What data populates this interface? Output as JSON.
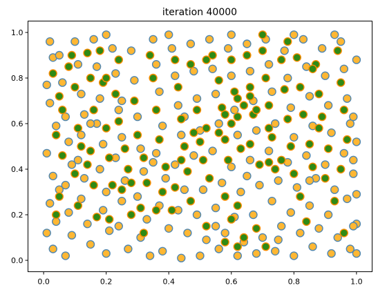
{
  "chart_data": {
    "type": "scatter",
    "title": "iteration 40000",
    "xlabel": "",
    "ylabel": "",
    "xlim": [
      -0.05,
      1.05
    ],
    "ylim": [
      -0.05,
      1.05
    ],
    "xticks": [
      0.0,
      0.2,
      0.4,
      0.6,
      0.8,
      1.0
    ],
    "xtick_labels": [
      "0.0",
      "0.2",
      "0.4",
      "0.6",
      "0.8",
      "1.0"
    ],
    "yticks": [
      0.0,
      0.2,
      0.4,
      0.6,
      0.8,
      1.0
    ],
    "ytick_labels": [
      "0.0",
      "0.2",
      "0.4",
      "0.6",
      "0.8",
      "1.0"
    ],
    "grid": false,
    "legend": "none",
    "series": [
      {
        "style": "orange-fill-steelblue-edge",
        "fill": "#ffb733",
        "edge": "#4f86b0",
        "points": [
          [
            0.01,
            0.77
          ],
          [
            0.02,
            0.96
          ],
          [
            0.03,
            0.89
          ],
          [
            0.02,
            0.69
          ],
          [
            0.04,
            0.59
          ],
          [
            0.01,
            0.47
          ],
          [
            0.03,
            0.37
          ],
          [
            0.05,
            0.31
          ],
          [
            0.02,
            0.25
          ],
          [
            0.04,
            0.17
          ],
          [
            0.01,
            0.12
          ],
          [
            0.03,
            0.05
          ],
          [
            0.06,
            0.78
          ],
          [
            0.07,
            0.63
          ],
          [
            0.08,
            0.52
          ],
          [
            0.09,
            0.42
          ],
          [
            0.07,
            0.33
          ],
          [
            0.08,
            0.21
          ],
          [
            0.09,
            0.11
          ],
          [
            0.07,
            0.02
          ],
          [
            0.1,
            0.96
          ],
          [
            0.11,
            0.86
          ],
          [
            0.12,
            0.73
          ],
          [
            0.13,
            0.64
          ],
          [
            0.12,
            0.55
          ],
          [
            0.11,
            0.44
          ],
          [
            0.13,
            0.36
          ],
          [
            0.12,
            0.27
          ],
          [
            0.14,
            0.16
          ],
          [
            0.15,
            0.07
          ],
          [
            0.16,
            0.97
          ],
          [
            0.17,
            0.85
          ],
          [
            0.18,
            0.71
          ],
          [
            0.17,
            0.6
          ],
          [
            0.19,
            0.51
          ],
          [
            0.18,
            0.4
          ],
          [
            0.2,
            0.3
          ],
          [
            0.19,
            0.22
          ],
          [
            0.21,
            0.13
          ],
          [
            0.2,
            0.03
          ],
          [
            0.22,
            0.93
          ],
          [
            0.23,
            0.82
          ],
          [
            0.24,
            0.66
          ],
          [
            0.25,
            0.54
          ],
          [
            0.23,
            0.45
          ],
          [
            0.26,
            0.35
          ],
          [
            0.25,
            0.26
          ],
          [
            0.24,
            0.15
          ],
          [
            0.27,
            0.05
          ],
          [
            0.28,
            0.92
          ],
          [
            0.29,
            0.79
          ],
          [
            0.3,
            0.63
          ],
          [
            0.31,
            0.49
          ],
          [
            0.32,
            0.39
          ],
          [
            0.3,
            0.28
          ],
          [
            0.33,
            0.18
          ],
          [
            0.31,
            0.1
          ],
          [
            0.34,
            0.02
          ],
          [
            0.35,
            0.97
          ],
          [
            0.36,
            0.86
          ],
          [
            0.37,
            0.74
          ],
          [
            0.38,
            0.59
          ],
          [
            0.36,
            0.47
          ],
          [
            0.39,
            0.36
          ],
          [
            0.37,
            0.24
          ],
          [
            0.4,
            0.14
          ],
          [
            0.38,
            0.04
          ],
          [
            0.41,
            0.93
          ],
          [
            0.42,
            0.81
          ],
          [
            0.43,
            0.68
          ],
          [
            0.44,
            0.55
          ],
          [
            0.42,
            0.42
          ],
          [
            0.45,
            0.31
          ],
          [
            0.43,
            0.22
          ],
          [
            0.46,
            0.12
          ],
          [
            0.44,
            0.01
          ],
          [
            0.47,
            0.95
          ],
          [
            0.48,
            0.83
          ],
          [
            0.49,
            0.71
          ],
          [
            0.5,
            0.57
          ],
          [
            0.48,
            0.46
          ],
          [
            0.51,
            0.31
          ],
          [
            0.49,
            0.2
          ],
          [
            0.52,
            0.09
          ],
          [
            0.5,
            0.02
          ],
          [
            0.53,
            0.97
          ],
          [
            0.54,
            0.84
          ],
          [
            0.55,
            0.73
          ],
          [
            0.56,
            0.6
          ],
          [
            0.54,
            0.48
          ],
          [
            0.57,
            0.34
          ],
          [
            0.55,
            0.23
          ],
          [
            0.58,
            0.12
          ],
          [
            0.56,
            0.05
          ],
          [
            0.59,
            0.93
          ],
          [
            0.6,
            0.81
          ],
          [
            0.61,
            0.66
          ],
          [
            0.62,
            0.55
          ],
          [
            0.6,
            0.41
          ],
          [
            0.63,
            0.3
          ],
          [
            0.61,
            0.19
          ],
          [
            0.64,
            0.08
          ],
          [
            0.62,
            0.02
          ],
          [
            0.65,
            0.95
          ],
          [
            0.66,
            0.83
          ],
          [
            0.67,
            0.7
          ],
          [
            0.68,
            0.57
          ],
          [
            0.66,
            0.44
          ],
          [
            0.69,
            0.33
          ],
          [
            0.67,
            0.2
          ],
          [
            0.7,
            0.1
          ],
          [
            0.68,
            0.03
          ],
          [
            0.71,
            0.97
          ],
          [
            0.72,
            0.86
          ],
          [
            0.73,
            0.74
          ],
          [
            0.74,
            0.6
          ],
          [
            0.72,
            0.48
          ],
          [
            0.75,
            0.35
          ],
          [
            0.73,
            0.26
          ],
          [
            0.76,
            0.15
          ],
          [
            0.74,
            0.04
          ],
          [
            0.77,
            0.92
          ],
          [
            0.78,
            0.8
          ],
          [
            0.79,
            0.67
          ],
          [
            0.8,
            0.54
          ],
          [
            0.78,
            0.43
          ],
          [
            0.81,
            0.32
          ],
          [
            0.79,
            0.21
          ],
          [
            0.82,
            0.12
          ],
          [
            0.8,
            0.02
          ],
          [
            0.83,
            0.97
          ],
          [
            0.84,
            0.85
          ],
          [
            0.85,
            0.72
          ],
          [
            0.86,
            0.59
          ],
          [
            0.84,
            0.46
          ],
          [
            0.87,
            0.36
          ],
          [
            0.85,
            0.24
          ],
          [
            0.88,
            0.14
          ],
          [
            0.86,
            0.06
          ],
          [
            0.89,
            0.93
          ],
          [
            0.9,
            0.81
          ],
          [
            0.91,
            0.68
          ],
          [
            0.92,
            0.56
          ],
          [
            0.9,
            0.42
          ],
          [
            0.93,
            0.31
          ],
          [
            0.91,
            0.2
          ],
          [
            0.94,
            0.1
          ],
          [
            0.92,
            0.03
          ],
          [
            0.95,
            0.96
          ],
          [
            0.96,
            0.84
          ],
          [
            0.97,
            0.71
          ],
          [
            0.98,
            0.6
          ],
          [
            0.96,
            0.47
          ],
          [
            0.99,
            0.38
          ],
          [
            0.97,
            0.27
          ],
          [
            1.0,
            0.16
          ],
          [
            0.98,
            0.05
          ],
          [
            1.0,
            0.88
          ],
          [
            0.99,
            0.63
          ],
          [
            1.0,
            0.52
          ],
          [
            0.99,
            0.44
          ],
          [
            1.0,
            0.29
          ],
          [
            0.99,
            0.15
          ],
          [
            1.0,
            0.03
          ],
          [
            0.15,
            0.6
          ],
          [
            0.35,
            0.43
          ],
          [
            0.45,
            0.63
          ],
          [
            0.55,
            0.15
          ],
          [
            0.65,
            0.37
          ],
          [
            0.75,
            0.09
          ],
          [
            0.85,
            0.35
          ],
          [
            0.25,
            0.7
          ],
          [
            0.05,
            0.9
          ],
          [
            0.6,
            0.99
          ],
          [
            0.4,
            0.99
          ],
          [
            0.2,
            0.99
          ],
          [
            0.8,
            0.99
          ],
          [
            0.93,
            0.99
          ]
        ]
      },
      {
        "style": "green-fill-orange-edge",
        "fill": "#2f8a15",
        "edge": "#ff8c00",
        "points": [
          [
            0.03,
            0.82
          ],
          [
            0.05,
            0.72
          ],
          [
            0.04,
            0.55
          ],
          [
            0.06,
            0.46
          ],
          [
            0.05,
            0.28
          ],
          [
            0.04,
            0.2
          ],
          [
            0.09,
            0.9
          ],
          [
            0.1,
            0.76
          ],
          [
            0.11,
            0.58
          ],
          [
            0.1,
            0.38
          ],
          [
            0.11,
            0.24
          ],
          [
            0.14,
            0.91
          ],
          [
            0.15,
            0.8
          ],
          [
            0.16,
            0.66
          ],
          [
            0.15,
            0.48
          ],
          [
            0.16,
            0.33
          ],
          [
            0.17,
            0.19
          ],
          [
            0.18,
            0.92
          ],
          [
            0.19,
            0.78
          ],
          [
            0.2,
            0.58
          ],
          [
            0.21,
            0.45
          ],
          [
            0.22,
            0.33
          ],
          [
            0.21,
            0.18
          ],
          [
            0.23,
            0.73
          ],
          [
            0.24,
            0.61
          ],
          [
            0.26,
            0.49
          ],
          [
            0.27,
            0.4
          ],
          [
            0.25,
            0.31
          ],
          [
            0.28,
            0.2
          ],
          [
            0.29,
            0.7
          ],
          [
            0.3,
            0.55
          ],
          [
            0.32,
            0.45
          ],
          [
            0.33,
            0.34
          ],
          [
            0.31,
            0.23
          ],
          [
            0.32,
            0.12
          ],
          [
            0.35,
            0.8
          ],
          [
            0.36,
            0.66
          ],
          [
            0.37,
            0.53
          ],
          [
            0.39,
            0.41
          ],
          [
            0.38,
            0.3
          ],
          [
            0.41,
            0.22
          ],
          [
            0.42,
            0.88
          ],
          [
            0.43,
            0.76
          ],
          [
            0.44,
            0.62
          ],
          [
            0.45,
            0.5
          ],
          [
            0.46,
            0.39
          ],
          [
            0.47,
            0.26
          ],
          [
            0.47,
            0.86
          ],
          [
            0.49,
            0.66
          ],
          [
            0.5,
            0.52
          ],
          [
            0.51,
            0.44
          ],
          [
            0.53,
            0.36
          ],
          [
            0.52,
            0.15
          ],
          [
            0.54,
            0.9
          ],
          [
            0.56,
            0.79
          ],
          [
            0.57,
            0.67
          ],
          [
            0.58,
            0.53
          ],
          [
            0.59,
            0.44
          ],
          [
            0.58,
            0.08
          ],
          [
            0.6,
            0.88
          ],
          [
            0.61,
            0.74
          ],
          [
            0.62,
            0.63
          ],
          [
            0.63,
            0.49
          ],
          [
            0.62,
            0.24
          ],
          [
            0.62,
            0.06
          ],
          [
            0.65,
            0.9
          ],
          [
            0.66,
            0.76
          ],
          [
            0.67,
            0.64
          ],
          [
            0.66,
            0.51
          ],
          [
            0.69,
            0.42
          ],
          [
            0.68,
            0.14
          ],
          [
            0.7,
            0.92
          ],
          [
            0.71,
            0.8
          ],
          [
            0.72,
            0.68
          ],
          [
            0.73,
            0.54
          ],
          [
            0.72,
            0.43
          ],
          [
            0.71,
            0.06
          ],
          [
            0.76,
            0.88
          ],
          [
            0.77,
            0.75
          ],
          [
            0.78,
            0.62
          ],
          [
            0.79,
            0.5
          ],
          [
            0.8,
            0.38
          ],
          [
            0.82,
            0.28
          ],
          [
            0.81,
            0.89
          ],
          [
            0.82,
            0.76
          ],
          [
            0.83,
            0.64
          ],
          [
            0.85,
            0.51
          ],
          [
            0.86,
            0.41
          ],
          [
            0.84,
            0.17
          ],
          [
            0.87,
            0.86
          ],
          [
            0.88,
            0.73
          ],
          [
            0.89,
            0.63
          ],
          [
            0.91,
            0.49
          ],
          [
            0.9,
            0.36
          ],
          [
            0.93,
            0.26
          ],
          [
            0.94,
            0.92
          ],
          [
            0.95,
            0.78
          ],
          [
            0.96,
            0.66
          ],
          [
            0.97,
            0.53
          ],
          [
            0.95,
            0.4
          ],
          [
            0.96,
            0.12
          ],
          [
            0.62,
            0.71
          ],
          [
            0.64,
            0.68
          ],
          [
            0.58,
            0.64
          ],
          [
            0.66,
            0.72
          ],
          [
            0.6,
            0.6
          ],
          [
            0.56,
            0.56
          ],
          [
            0.52,
            0.58
          ],
          [
            0.68,
            0.66
          ],
          [
            0.72,
            0.58
          ],
          [
            0.74,
            0.4
          ],
          [
            0.76,
            0.44
          ],
          [
            0.44,
            0.44
          ],
          [
            0.48,
            0.56
          ],
          [
            0.36,
            0.22
          ],
          [
            0.28,
            0.34
          ],
          [
            0.14,
            0.42
          ],
          [
            0.12,
            0.5
          ],
          [
            0.2,
            0.8
          ],
          [
            0.34,
            0.9
          ],
          [
            0.42,
            0.32
          ],
          [
            0.58,
            0.28
          ],
          [
            0.6,
            0.18
          ],
          [
            0.64,
            0.1
          ],
          [
            0.88,
            0.58
          ],
          [
            0.86,
            0.84
          ],
          [
            0.78,
            0.96
          ],
          [
            0.7,
            0.99
          ],
          [
            0.52,
            0.88
          ],
          [
            0.24,
            0.88
          ],
          [
            0.08,
            0.85
          ],
          [
            0.06,
            0.66
          ]
        ]
      }
    ]
  }
}
